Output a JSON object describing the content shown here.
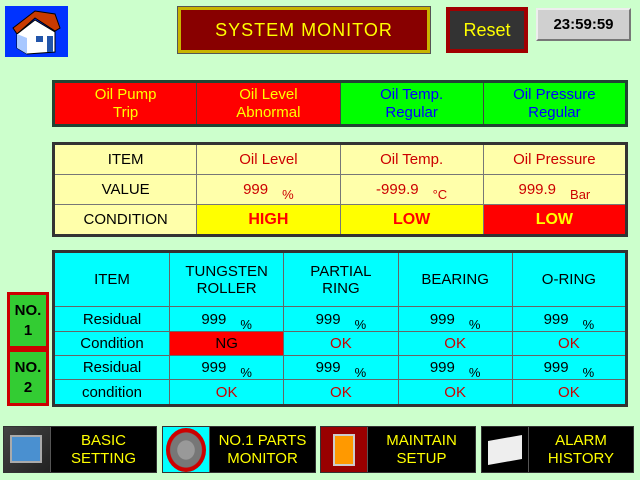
{
  "header": {
    "title": "SYSTEM MONITOR",
    "reset_label": "Reset",
    "clock": "23:59:59"
  },
  "status": [
    {
      "line1": "Oil Pump",
      "line2": "Trip",
      "bg": "#ff0000",
      "fg": "#ffff00"
    },
    {
      "line1": "Oil Level",
      "line2": "Abnormal",
      "bg": "#ff0000",
      "fg": "#ffff00"
    },
    {
      "line1": "Oil Temp.",
      "line2": "Regular",
      "bg": "#00ff00",
      "fg": "#0000ff"
    },
    {
      "line1": "Oil Pressure",
      "line2": "Regular",
      "bg": "#00ff00",
      "fg": "#0000ff"
    }
  ],
  "oil": {
    "headers": [
      "ITEM",
      "Oil Level",
      "Oil Temp.",
      "Oil Pressure"
    ],
    "value_label": "VALUE",
    "values": [
      {
        "v": "999",
        "u": "%"
      },
      {
        "v": "-999.9",
        "u": "°C"
      },
      {
        "v": "999.9",
        "u": "Bar"
      }
    ],
    "condition_label": "CONDITION",
    "conditions": [
      {
        "t": "HIGH",
        "bg": "#ffff00"
      },
      {
        "t": "LOW",
        "bg": "#ffff00"
      },
      {
        "t": "LOW",
        "bg": "#ff0000",
        "fg": "#ffff00"
      }
    ]
  },
  "parts": {
    "headers": [
      "ITEM",
      "TUNGSTEN ROLLER",
      "PARTIAL RING",
      "BEARING",
      "O-RING"
    ],
    "rows": [
      {
        "label": "Residual",
        "values": [
          "999",
          "999",
          "999",
          "999"
        ],
        "unit": "%"
      },
      {
        "label": "Condition",
        "values": [
          "NG",
          "OK",
          "OK",
          "OK"
        ]
      },
      {
        "label": "Residual",
        "values": [
          "999",
          "999",
          "999",
          "999"
        ],
        "unit": "%"
      },
      {
        "label": "condition",
        "values": [
          "OK",
          "OK",
          "OK",
          "OK"
        ]
      }
    ],
    "groups": [
      "NO.\n1",
      "NO.\n2"
    ]
  },
  "nav": [
    {
      "label": "BASIC SETTING",
      "icon": "computer-icon"
    },
    {
      "label": "NO.1 PARTS MONITOR",
      "icon": "roller-icon"
    },
    {
      "label": "MAINTAIN SETUP",
      "icon": "technician-icon"
    },
    {
      "label": "ALARM HISTORY",
      "icon": "book-icon"
    }
  ]
}
